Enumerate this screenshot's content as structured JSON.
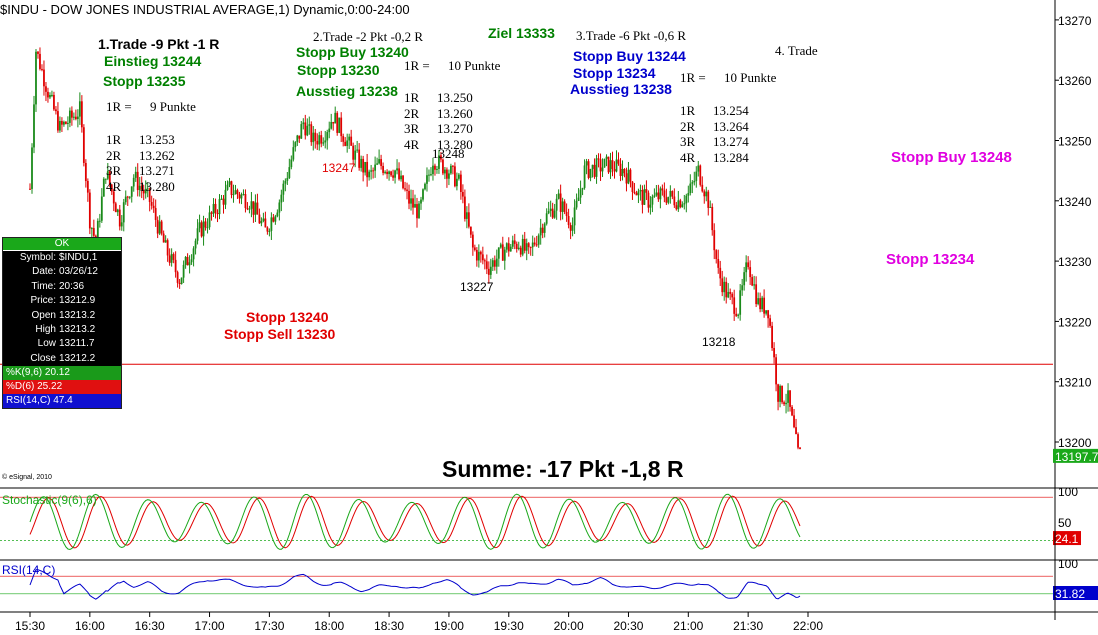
{
  "window_title": "$INDU - DOW JONES INDUSTRIAL AVERAGE,1) Dynamic,0:00-24:00",
  "copyright": "© eSignal, 2010",
  "data_window": {
    "status": "OK",
    "rows": [
      {
        "key": "Symbol:",
        "value": "$INDU,1"
      },
      {
        "key": "Date:",
        "value": "03/26/12"
      },
      {
        "key": "Time:",
        "value": "20:36"
      },
      {
        "key": "Price:",
        "value": "13212.9"
      },
      {
        "key": "Open",
        "value": "13213.2"
      },
      {
        "key": "High",
        "value": "13213.2"
      },
      {
        "key": "Low",
        "value": "13211.7"
      },
      {
        "key": "Close",
        "value": "13212.2"
      }
    ],
    "k_label": "%K(9,6) 20.12",
    "d_label": "%D(6) 25.22",
    "rsi_label": "RSI(14,C) 47.4"
  },
  "annotations": {
    "trade1": {
      "title": "1.Trade -9 Pkt -1 R",
      "entry": "Einstieg 13244",
      "stop": "Stopp 13235",
      "r_label": "1R =",
      "r_value": "9 Punkte",
      "targets": [
        [
          "1R",
          "13.253"
        ],
        [
          "2R",
          "13.262"
        ],
        [
          "3R",
          "13.271"
        ],
        [
          "4R",
          "13.280"
        ]
      ]
    },
    "trade2": {
      "title": "2.Trade -2 Pkt -0,2 R",
      "stop_buy": "Stopp Buy 13240",
      "stop": "Stopp 13230",
      "exit": "Ausstieg 13238",
      "r_label": "1R =",
      "r_value": "10 Punkte",
      "targets": [
        [
          "1R",
          "13.250"
        ],
        [
          "2R",
          "13.260"
        ],
        [
          "3R",
          "13.270"
        ],
        [
          "4R",
          "13.280"
        ]
      ]
    },
    "target": "Ziel 13333",
    "trade3": {
      "title": "3.Trade -6 Pkt -0,6 R",
      "stop_buy": "Stopp Buy 13244",
      "stop": "Stopp 13234",
      "exit": "Ausstieg 13238",
      "r_label": "1R =",
      "r_value": "10 Punkte",
      "targets": [
        [
          "1R",
          "13.254"
        ],
        [
          "2R",
          "13.264"
        ],
        [
          "3R",
          "13.274"
        ],
        [
          "4R",
          "13.284"
        ]
      ]
    },
    "trade4": {
      "title": "4. Trade",
      "stop_buy": "Stopp Buy 13248",
      "stop": "Stopp 13234"
    },
    "stop_red": "Stopp 13240",
    "stop_sell_red": "Stopp Sell 13230",
    "low_labels": {
      "a": "13247",
      "b": "13248",
      "c": "13227",
      "d": "13218"
    },
    "summe": "Summe: -17 Pkt -1,8 R"
  },
  "price_axis": {
    "ticks": [
      "13270",
      "13260",
      "13250",
      "13240",
      "13230",
      "13220",
      "13210",
      "13200"
    ],
    "last_price": "13197.7"
  },
  "stoch_panel": {
    "label": "Stochastic(9(6),6)",
    "ticks": [
      "100",
      "50"
    ],
    "last_value": "24.1"
  },
  "rsi_panel": {
    "label": "RSI(14,C)",
    "ticks": [
      "100"
    ],
    "last_value": "31.82"
  },
  "time_axis": [
    "15:30",
    "16:00",
    "16:30",
    "17:00",
    "17:30",
    "18:00",
    "18:30",
    "19:00",
    "19:30",
    "20:00",
    "20:30",
    "21:00",
    "21:30",
    "22:00"
  ],
  "colors": {
    "up": "#1a8a1a",
    "down": "#e00000",
    "stoch_k": "#1aa81a",
    "stoch_d": "#e00000",
    "rsi": "#0000cc",
    "ref_line": "#e00000"
  },
  "chart_data": {
    "type": "candlestick",
    "title": "$INDU - DOW JONES INDUSTRIAL AVERAGE,1) Dynamic,0:00-24:00",
    "x_range": [
      "15:30",
      "22:00"
    ],
    "y_range": [
      13193,
      13275
    ],
    "grid": false,
    "close_path": [
      {
        "t": "15:30",
        "v": 13242
      },
      {
        "t": "15:33",
        "v": 13265
      },
      {
        "t": "15:40",
        "v": 13257
      },
      {
        "t": "15:45",
        "v": 13252
      },
      {
        "t": "15:55",
        "v": 13255
      },
      {
        "t": "16:00",
        "v": 13237
      },
      {
        "t": "16:03",
        "v": 13233
      },
      {
        "t": "16:08",
        "v": 13245
      },
      {
        "t": "16:15",
        "v": 13237
      },
      {
        "t": "16:22",
        "v": 13244
      },
      {
        "t": "16:30",
        "v": 13240
      },
      {
        "t": "16:38",
        "v": 13232
      },
      {
        "t": "16:45",
        "v": 13227
      },
      {
        "t": "16:55",
        "v": 13235
      },
      {
        "t": "17:02",
        "v": 13238
      },
      {
        "t": "17:10",
        "v": 13242
      },
      {
        "t": "17:20",
        "v": 13240
      },
      {
        "t": "17:28",
        "v": 13235
      },
      {
        "t": "17:35",
        "v": 13240
      },
      {
        "t": "17:42",
        "v": 13248
      },
      {
        "t": "17:47",
        "v": 13253
      },
      {
        "t": "17:52",
        "v": 13250
      },
      {
        "t": "17:57",
        "v": 13251
      },
      {
        "t": "18:02",
        "v": 13254
      },
      {
        "t": "18:07",
        "v": 13251
      },
      {
        "t": "18:12",
        "v": 13248
      },
      {
        "t": "18:20",
        "v": 13244
      },
      {
        "t": "18:25",
        "v": 13246
      },
      {
        "t": "18:33",
        "v": 13245
      },
      {
        "t": "18:40",
        "v": 13240
      },
      {
        "t": "18:45",
        "v": 13238
      },
      {
        "t": "18:52",
        "v": 13247
      },
      {
        "t": "19:00",
        "v": 13245
      },
      {
        "t": "19:05",
        "v": 13243
      },
      {
        "t": "19:12",
        "v": 13232
      },
      {
        "t": "19:20",
        "v": 13229
      },
      {
        "t": "19:28",
        "v": 13232
      },
      {
        "t": "19:35",
        "v": 13233
      },
      {
        "t": "19:40",
        "v": 13231
      },
      {
        "t": "19:48",
        "v": 13237
      },
      {
        "t": "19:55",
        "v": 13240
      },
      {
        "t": "20:02",
        "v": 13236
      },
      {
        "t": "20:08",
        "v": 13245
      },
      {
        "t": "20:20",
        "v": 13246
      },
      {
        "t": "20:28",
        "v": 13245
      },
      {
        "t": "20:35",
        "v": 13241
      },
      {
        "t": "20:40",
        "v": 13240
      },
      {
        "t": "20:48",
        "v": 13241
      },
      {
        "t": "20:55",
        "v": 13240
      },
      {
        "t": "21:00",
        "v": 13241
      },
      {
        "t": "21:05",
        "v": 13245
      },
      {
        "t": "21:10",
        "v": 13240
      },
      {
        "t": "21:15",
        "v": 13228
      },
      {
        "t": "21:20",
        "v": 13224
      },
      {
        "t": "21:25",
        "v": 13222
      },
      {
        "t": "21:30",
        "v": 13230
      },
      {
        "t": "21:35",
        "v": 13223
      },
      {
        "t": "21:40",
        "v": 13222
      },
      {
        "t": "21:45",
        "v": 13208
      },
      {
        "t": "21:50",
        "v": 13207
      },
      {
        "t": "21:55",
        "v": 13198
      },
      {
        "t": "22:00",
        "v": 13197.7
      }
    ],
    "reference_line": 13212.9,
    "stochastic": {
      "ylim": [
        0,
        100
      ],
      "levels": [
        90,
        20
      ],
      "last": 24.1
    },
    "rsi": {
      "ylim": [
        0,
        100
      ],
      "levels": [
        70,
        30
      ],
      "last": 31.82
    }
  }
}
